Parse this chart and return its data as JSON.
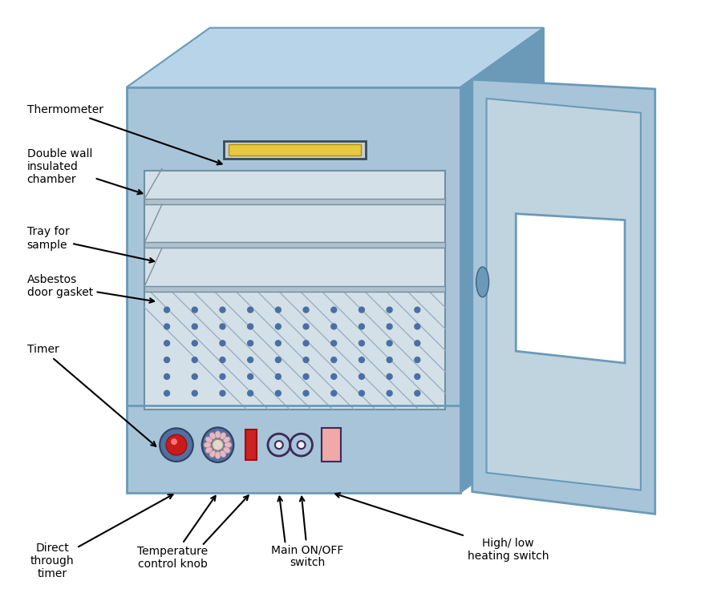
{
  "bg_color": "#ffffff",
  "oven_body_color": "#a8c4d8",
  "oven_body_dark": "#6a9ab8",
  "oven_top_color": "#b8d4e8",
  "inner_chamber_color": "#d4e0e8",
  "door_color": "#a8c4d8",
  "door_dark": "#6a9ab8",
  "thermometer_bar": "#e8c840",
  "dot_color": "#4a6fa5",
  "labels": {
    "thermometer": "Thermometer",
    "double_wall": "Double wall\ninsulated\nchamber",
    "tray": "Tray for\nsample",
    "asbestos": "Asbestos\ndoor gasket",
    "timer": "Timer",
    "direct": "Direct\nthrough\ntimer",
    "temp_knob": "Temperature\ncontrol knob",
    "main_switch": "Main ON/OFF\nswitch",
    "high_low": "High/ low\nheating switch"
  }
}
